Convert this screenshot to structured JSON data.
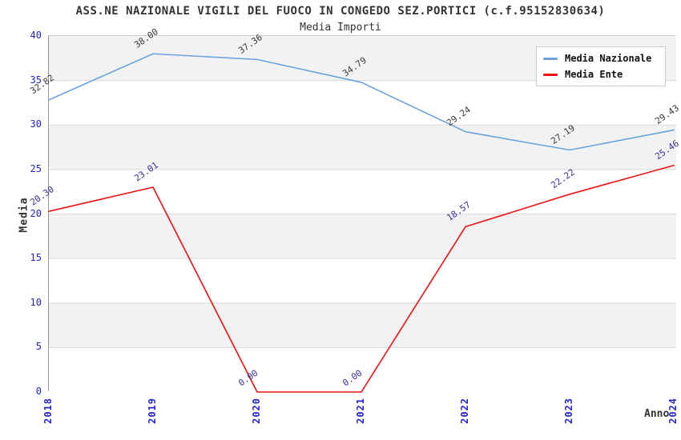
{
  "header": {
    "title": "ASS.NE NAZIONALE VIGILI DEL FUOCO IN CONGEDO SEZ.PORTICI (c.f.95152830634)",
    "subtitle": "Media Importi"
  },
  "legend": {
    "position": "top-right",
    "items": [
      {
        "label": "Media Nazionale",
        "color": "#6ba3dc"
      },
      {
        "label": "Media Ente",
        "color": "#ee1111"
      }
    ]
  },
  "chart_data": {
    "type": "line",
    "title": "ASS.NE NAZIONALE VIGILI DEL FUOCO IN CONGEDO SEZ.PORTICI (c.f.95152830634)",
    "subtitle": "Media Importi",
    "xlabel": "Anno",
    "ylabel": "Media",
    "x": [
      "2018",
      "2019",
      "2020",
      "2021",
      "2022",
      "2023",
      "2024"
    ],
    "series": [
      {
        "name": "Media Nazionale",
        "color": "#6ba3dc",
        "label_color": "#3a3a3a",
        "values": [
          32.82,
          38.0,
          37.36,
          34.79,
          29.24,
          27.19,
          29.43
        ],
        "point_labels": [
          "32.82",
          "38.00",
          "37.36",
          "34.79",
          "29.24",
          "27.19",
          "29.43"
        ]
      },
      {
        "name": "Media Ente",
        "color": "#ee1111",
        "label_color": "#333399",
        "values": [
          20.3,
          23.01,
          0.0,
          0.0,
          18.57,
          22.22,
          25.46
        ],
        "point_labels": [
          "20.30",
          "23.01",
          "0.00",
          "0.00",
          "18.57",
          "22.22",
          "25.46"
        ]
      }
    ],
    "ylim": [
      0,
      40
    ],
    "ytick_step": 5,
    "yticks": [
      0,
      5,
      10,
      15,
      20,
      25,
      30,
      35,
      40
    ],
    "grid": "horizontal gridlines with alternating gray/white bands every 5 units",
    "band_colors": [
      "#f2f2f2",
      "#ffffff"
    ],
    "gridline_color": "#d9d9d9",
    "tick_label_color": "#2424cd",
    "legend_position": "top-right"
  }
}
